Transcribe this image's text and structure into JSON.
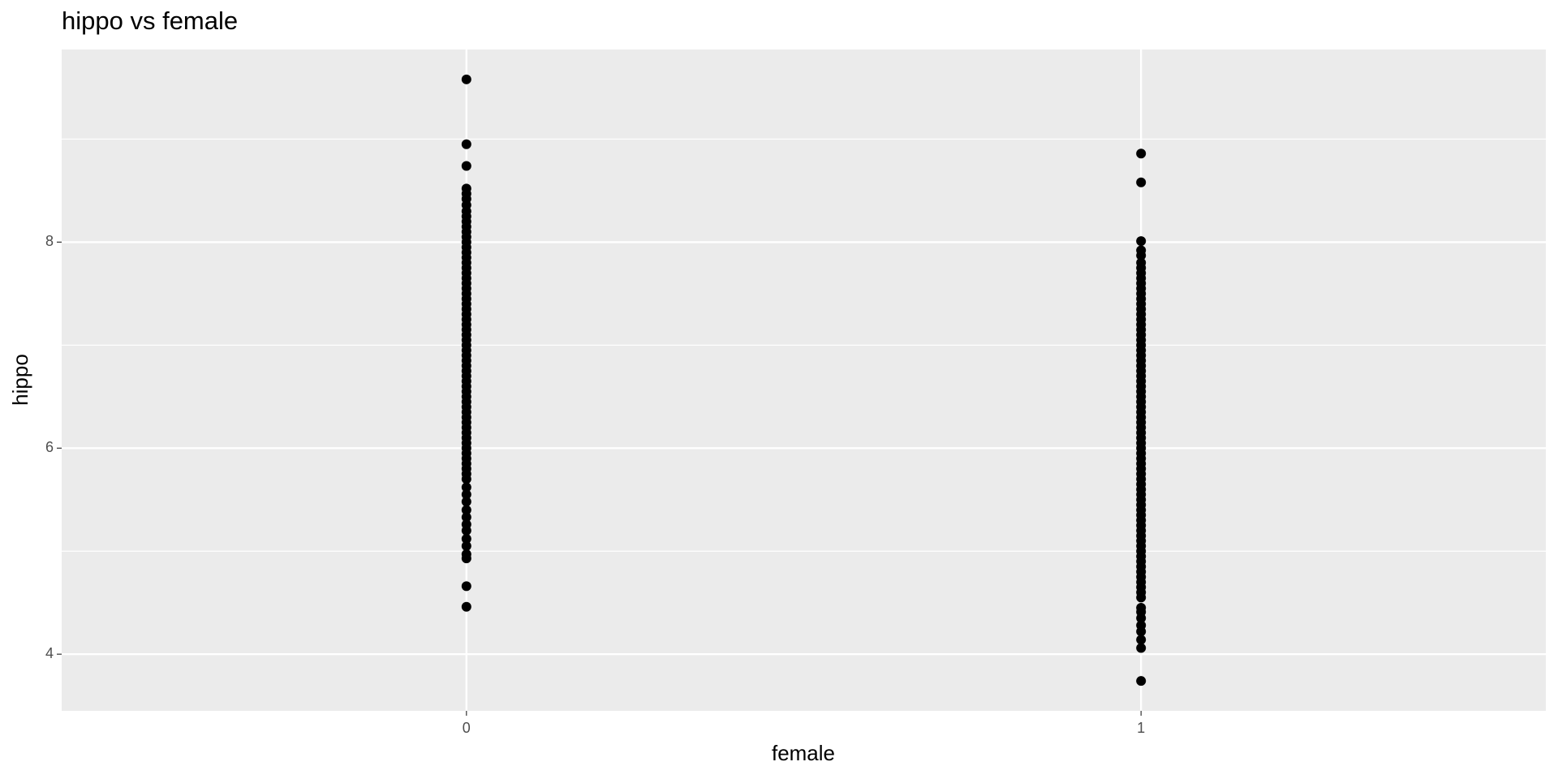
{
  "chart_data": {
    "type": "scatter",
    "title": "hippo vs female",
    "x_label": "female",
    "y_label": "hippo",
    "xlim": [
      -0.6,
      1.6
    ],
    "xticks": [
      0,
      1
    ],
    "ylim": [
      3.45,
      9.87
    ],
    "yticks": [
      4,
      6,
      8
    ],
    "yminor": [
      5,
      7,
      9
    ],
    "grid": true,
    "series": [
      {
        "color": "#000000",
        "x": [
          0,
          0,
          0,
          0,
          0,
          0,
          0,
          0,
          0,
          0,
          0,
          0,
          0,
          0,
          0,
          0,
          0,
          0,
          0,
          0,
          0,
          0,
          0,
          0,
          0,
          0,
          0,
          0,
          0,
          0,
          0,
          0,
          0,
          0,
          0,
          0,
          0,
          0,
          0,
          0,
          0,
          0,
          0,
          0,
          0,
          0,
          0,
          0,
          0,
          0,
          0,
          0,
          0,
          0,
          0,
          0,
          0,
          0,
          0,
          0,
          0,
          0,
          0,
          0,
          0,
          0,
          0,
          0,
          0,
          0,
          0,
          0,
          0
        ],
        "values": [
          9.58,
          8.95,
          8.74,
          8.52,
          8.47,
          8.42,
          8.36,
          8.3,
          8.25,
          8.2,
          8.15,
          8.1,
          8.05,
          8.0,
          7.95,
          7.9,
          7.85,
          7.8,
          7.75,
          7.7,
          7.65,
          7.6,
          7.55,
          7.5,
          7.45,
          7.4,
          7.35,
          7.3,
          7.25,
          7.2,
          7.15,
          7.1,
          7.05,
          7.0,
          6.95,
          6.9,
          6.85,
          6.8,
          6.75,
          6.7,
          6.65,
          6.6,
          6.55,
          6.5,
          6.45,
          6.4,
          6.35,
          6.3,
          6.25,
          6.2,
          6.15,
          6.1,
          6.05,
          6.0,
          5.95,
          5.9,
          5.85,
          5.8,
          5.75,
          5.7,
          5.62,
          5.55,
          5.48,
          5.4,
          5.33,
          5.26,
          5.2,
          5.12,
          5.05,
          4.97,
          4.93,
          4.66,
          4.46
        ]
      },
      {
        "color": "#000000",
        "x": [
          1,
          1,
          1,
          1,
          1,
          1,
          1,
          1,
          1,
          1,
          1,
          1,
          1,
          1,
          1,
          1,
          1,
          1,
          1,
          1,
          1,
          1,
          1,
          1,
          1,
          1,
          1,
          1,
          1,
          1,
          1,
          1,
          1,
          1,
          1,
          1,
          1,
          1,
          1,
          1,
          1,
          1,
          1,
          1,
          1,
          1,
          1,
          1,
          1,
          1,
          1,
          1,
          1,
          1,
          1,
          1,
          1,
          1,
          1,
          1,
          1,
          1,
          1,
          1,
          1,
          1,
          1,
          1,
          1,
          1,
          1,
          1,
          1,
          1,
          1,
          1,
          1,
          1,
          1
        ],
        "values": [
          8.86,
          8.58,
          8.01,
          7.92,
          7.87,
          7.8,
          7.75,
          7.7,
          7.65,
          7.6,
          7.55,
          7.5,
          7.45,
          7.4,
          7.35,
          7.3,
          7.25,
          7.2,
          7.15,
          7.1,
          7.05,
          7.0,
          6.95,
          6.9,
          6.85,
          6.8,
          6.75,
          6.7,
          6.65,
          6.6,
          6.55,
          6.5,
          6.45,
          6.4,
          6.35,
          6.3,
          6.25,
          6.2,
          6.15,
          6.1,
          6.05,
          6.0,
          5.95,
          5.9,
          5.85,
          5.8,
          5.75,
          5.7,
          5.65,
          5.6,
          5.55,
          5.5,
          5.45,
          5.4,
          5.35,
          5.3,
          5.25,
          5.2,
          5.15,
          5.1,
          5.05,
          5.0,
          4.95,
          4.9,
          4.85,
          4.8,
          4.75,
          4.7,
          4.65,
          4.6,
          4.55,
          4.45,
          4.41,
          4.35,
          4.28,
          4.22,
          4.14,
          4.06,
          3.74
        ]
      }
    ]
  }
}
